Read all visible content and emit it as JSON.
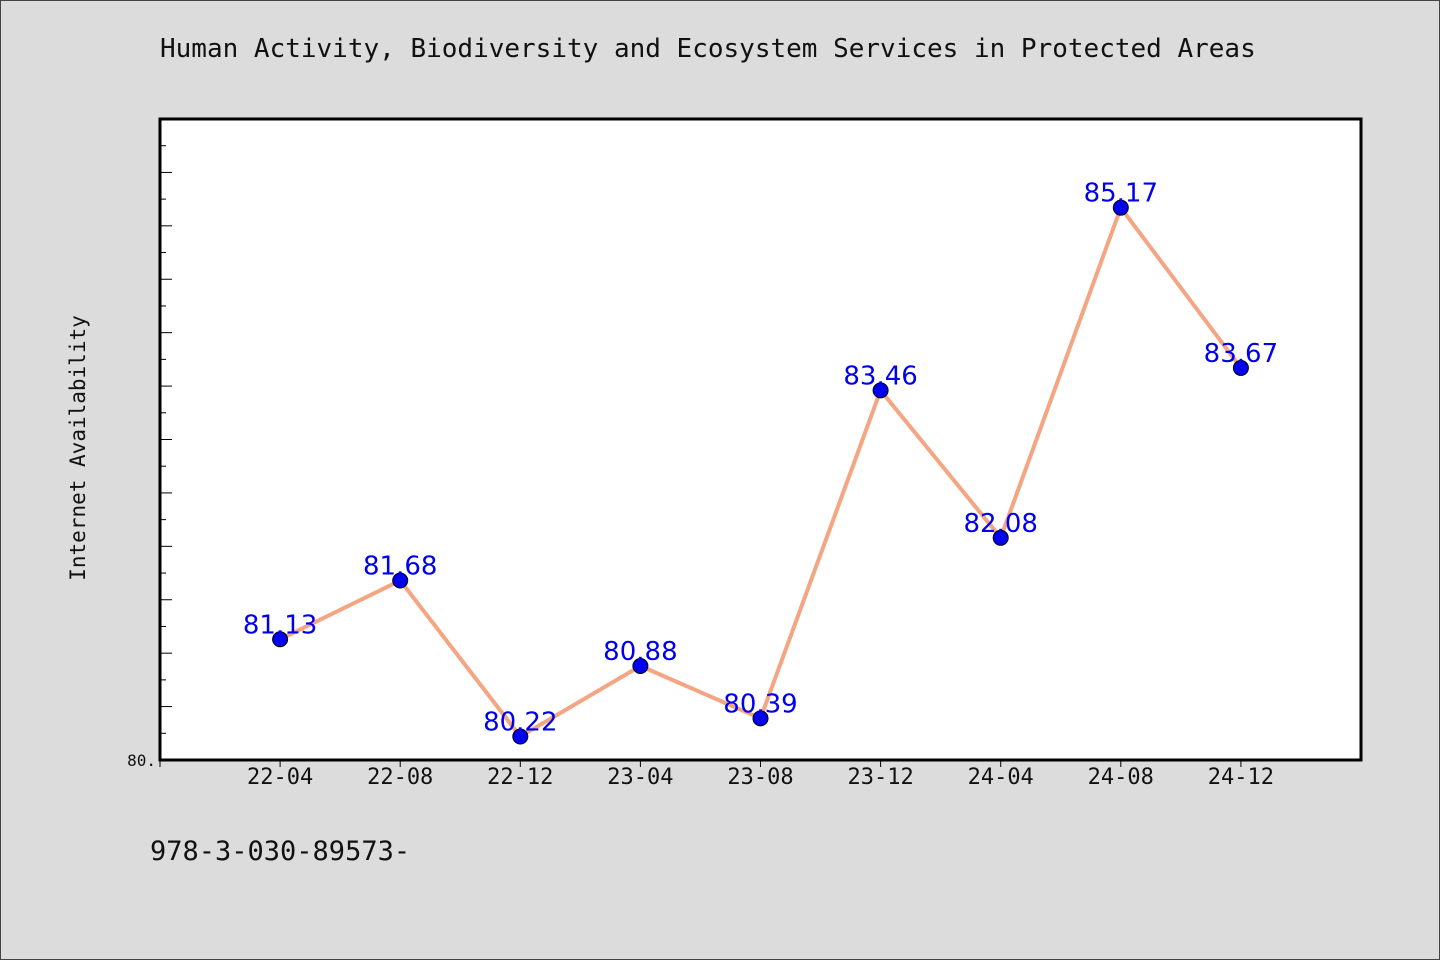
{
  "chart_data": {
    "type": "line",
    "title": "Human Activity, Biodiversity and Ecosystem Services in Protected Areas",
    "xlabel": "",
    "ylabel": "Internet Availability",
    "categories": [
      "22-04",
      "22-08",
      "22-12",
      "23-04",
      "23-08",
      "23-12",
      "24-04",
      "24-08",
      "24-12"
    ],
    "series": [
      {
        "values": [
          81.13,
          81.68,
          80.22,
          80.88,
          80.39,
          83.46,
          82.08,
          85.17,
          83.67
        ]
      }
    ],
    "data_labels": [
      "81.13",
      "81.68",
      "80.22",
      "80.88",
      "80.39",
      "83.46",
      "82.08",
      "85.17",
      "83.67"
    ],
    "ylim": [
      80.0,
      86.0
    ],
    "xlim": [
      -1,
      9
    ],
    "y_tick_labels": [
      "80."
    ],
    "grid": false,
    "legend": "none",
    "line_color": "#f4a582",
    "marker_color": "#0000ee",
    "label_color": "#0000ee"
  },
  "footer": {
    "code": "978-3-030-89573-"
  }
}
